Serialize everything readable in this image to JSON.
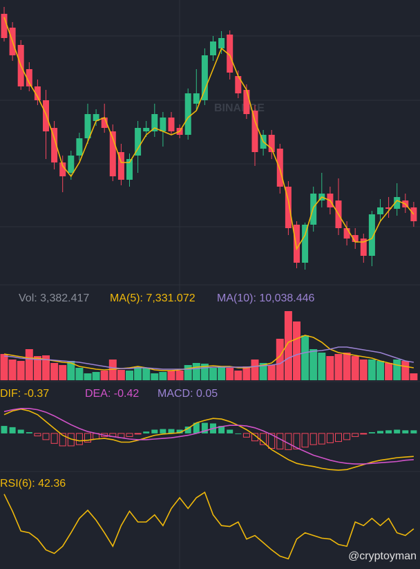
{
  "chart_data": [
    {
      "type": "candlestick",
      "ylim": [
        0,
        420
      ],
      "up_color": "#2ebd85",
      "down_color": "#f6465d",
      "ma_color": "#f0b90b",
      "ohlc": [
        [
          400,
          410,
          360,
          365
        ],
        [
          380,
          388,
          332,
          340
        ],
        [
          355,
          362,
          290,
          295
        ],
        [
          320,
          330,
          288,
          295
        ],
        [
          295,
          305,
          268,
          275
        ],
        [
          275,
          290,
          190,
          230
        ],
        [
          235,
          245,
          175,
          185
        ],
        [
          185,
          195,
          142,
          165
        ],
        [
          170,
          202,
          160,
          195
        ],
        [
          195,
          228,
          188,
          220
        ],
        [
          220,
          270,
          212,
          255
        ],
        [
          245,
          262,
          238,
          255
        ],
        [
          250,
          270,
          228,
          235
        ],
        [
          230,
          240,
          158,
          165
        ],
        [
          200,
          212,
          152,
          160
        ],
        [
          160,
          198,
          150,
          190
        ],
        [
          195,
          245,
          170,
          235
        ],
        [
          230,
          245,
          222,
          235
        ],
        [
          230,
          270,
          222,
          255
        ],
        [
          230,
          258,
          208,
          250
        ],
        [
          250,
          258,
          225,
          230
        ],
        [
          235,
          240,
          220,
          225
        ],
        [
          225,
          292,
          218,
          285
        ],
        [
          270,
          320,
          260,
          285
        ],
        [
          275,
          350,
          268,
          340
        ],
        [
          340,
          368,
          332,
          360
        ],
        [
          350,
          375,
          342,
          365
        ],
        [
          370,
          376,
          305,
          315
        ],
        [
          310,
          318,
          278,
          285
        ],
        [
          290,
          298,
          248,
          255
        ],
        [
          260,
          268,
          180,
          200
        ],
        [
          205,
          232,
          195,
          225
        ],
        [
          225,
          232,
          190,
          200
        ],
        [
          205,
          212,
          140,
          150
        ],
        [
          150,
          158,
          80,
          90
        ],
        [
          95,
          100,
          32,
          40
        ],
        [
          40,
          98,
          30,
          95
        ],
        [
          95,
          150,
          85,
          140
        ],
        [
          130,
          170,
          120,
          140
        ],
        [
          140,
          150,
          110,
          120
        ],
        [
          130,
          162,
          80,
          90
        ],
        [
          90,
          100,
          65,
          75
        ],
        [
          80,
          90,
          60,
          70
        ],
        [
          75,
          82,
          40,
          50
        ],
        [
          50,
          115,
          35,
          110
        ],
        [
          110,
          132,
          100,
          120
        ],
        [
          120,
          135,
          105,
          118
        ],
        [
          118,
          155,
          108,
          135
        ],
        [
          130,
          140,
          112,
          120
        ],
        [
          120,
          128,
          92,
          100
        ]
      ],
      "ma": [
        395,
        360,
        325,
        300,
        280,
        255,
        220,
        180,
        165,
        185,
        215,
        245,
        250,
        220,
        185,
        185,
        205,
        225,
        235,
        230,
        225,
        230,
        250,
        260,
        290,
        320,
        350,
        340,
        310,
        290,
        245,
        215,
        205,
        175,
        130,
        60,
        80,
        120,
        135,
        130,
        110,
        90,
        70,
        70,
        75,
        100,
        115,
        130,
        125,
        110
      ],
      "watermark": "BINANCE"
    },
    {
      "type": "volume",
      "ylim": [
        0,
        100
      ],
      "label": "Vol: 3,382.417",
      "values": [
        38,
        30,
        28,
        45,
        35,
        36,
        25,
        22,
        28,
        18,
        10,
        12,
        14,
        30,
        15,
        14,
        20,
        18,
        10,
        12,
        14,
        14,
        22,
        25,
        24,
        18,
        20,
        18,
        14,
        20,
        30,
        25,
        22,
        60,
        100,
        85,
        65,
        45,
        40,
        35,
        38,
        40,
        35,
        30,
        30,
        28,
        25,
        30,
        28,
        10
      ],
      "series": [
        {
          "name": "MA(5): 7,331.072",
          "color": "#f0b90b",
          "values": [
            38,
            36,
            34,
            32,
            32,
            30,
            28,
            26,
            25,
            20,
            18,
            16,
            15,
            16,
            17,
            18,
            20,
            18,
            15,
            14,
            14,
            15,
            17,
            19,
            20,
            21,
            20,
            20,
            18,
            18,
            20,
            22,
            25,
            35,
            55,
            60,
            65,
            62,
            55,
            45,
            40,
            38,
            36,
            34,
            32,
            28,
            25,
            22,
            20,
            18
          ]
        },
        {
          "name": "MA(10): 10,038.446",
          "color": "#9b83d3",
          "values": [
            35,
            34,
            32,
            31,
            30,
            30,
            29,
            28,
            27,
            26,
            24,
            22,
            20,
            18,
            17,
            17,
            18,
            18,
            17,
            16,
            16,
            16,
            16,
            17,
            18,
            19,
            19,
            19,
            19,
            19,
            20,
            21,
            22,
            24,
            32,
            37,
            40,
            42,
            43,
            45,
            48,
            48,
            46,
            44,
            42,
            40,
            36,
            32,
            28,
            26
          ]
        }
      ]
    },
    {
      "type": "macd",
      "ylim": [
        -0.7,
        0.52
      ],
      "label": "MACD: 0.05",
      "label_color": "#9b83d3",
      "values": [
        0.12,
        0.1,
        0.06,
        0.02,
        -0.04,
        -0.1,
        -0.16,
        -0.2,
        -0.2,
        -0.18,
        -0.14,
        -0.09,
        -0.05,
        -0.05,
        -0.07,
        -0.05,
        -0.01,
        0.03,
        0.06,
        0.07,
        0.07,
        0.06,
        0.11,
        0.17,
        0.17,
        0.16,
        0.12,
        0.06,
        0.0,
        -0.06,
        -0.12,
        -0.18,
        -0.24,
        -0.25,
        -0.26,
        -0.25,
        -0.22,
        -0.18,
        -0.17,
        -0.15,
        -0.13,
        -0.1,
        -0.05,
        -0.01,
        0.02,
        0.04,
        0.05,
        0.06,
        0.05,
        0.05
      ],
      "series": [
        {
          "name": "DIF: -0.37",
          "color": "#f0b90b",
          "values": [
            0.3,
            0.36,
            0.39,
            0.36,
            0.3,
            0.19,
            0.08,
            -0.03,
            -0.09,
            -0.12,
            -0.11,
            -0.09,
            -0.08,
            -0.1,
            -0.14,
            -0.14,
            -0.11,
            -0.07,
            -0.03,
            -0.01,
            0,
            0.01,
            0.08,
            0.17,
            0.21,
            0.24,
            0.23,
            0.19,
            0.13,
            0.06,
            -0.03,
            -0.14,
            -0.26,
            -0.34,
            -0.42,
            -0.48,
            -0.51,
            -0.53,
            -0.56,
            -0.58,
            -0.59,
            -0.58,
            -0.54,
            -0.5,
            -0.46,
            -0.43,
            -0.41,
            -0.39,
            -0.38,
            -0.37
          ]
        },
        {
          "name": "DEA: -0.42",
          "color": "#d153c9",
          "values": [
            0.35,
            0.38,
            0.4,
            0.4,
            0.38,
            0.34,
            0.28,
            0.21,
            0.14,
            0.08,
            0.03,
            0.0,
            -0.03,
            -0.05,
            -0.07,
            -0.09,
            -0.1,
            -0.1,
            -0.09,
            -0.08,
            -0.07,
            -0.05,
            -0.03,
            0.0,
            0.04,
            0.08,
            0.11,
            0.13,
            0.13,
            0.12,
            0.09,
            0.04,
            -0.02,
            -0.09,
            -0.16,
            -0.23,
            -0.29,
            -0.35,
            -0.39,
            -0.43,
            -0.46,
            -0.48,
            -0.49,
            -0.49,
            -0.48,
            -0.47,
            -0.46,
            -0.45,
            -0.43,
            -0.42
          ]
        }
      ]
    },
    {
      "type": "rsi",
      "ylim": [
        0,
        100
      ],
      "series": [
        {
          "name": "RSI(6): 42.36",
          "color": "#f0b90b",
          "values": [
            81,
            62,
            40,
            38,
            31,
            19,
            15,
            23,
            38,
            54,
            63,
            52,
            38,
            23,
            46,
            62,
            50,
            50,
            58,
            46,
            65,
            77,
            65,
            77,
            83,
            58,
            46,
            45,
            50,
            31,
            35,
            27,
            19,
            12,
            9,
            31,
            38,
            35,
            32,
            31,
            25,
            23,
            50,
            46,
            54,
            46,
            54,
            38,
            35,
            42.36
          ]
        }
      ],
      "credit": "@cryptoyman"
    }
  ]
}
